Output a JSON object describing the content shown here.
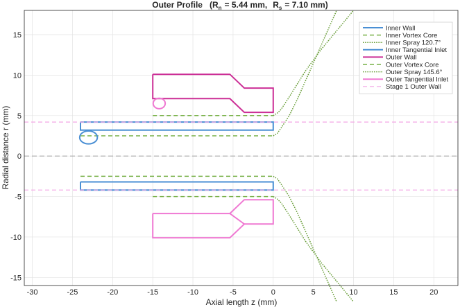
{
  "chart_data": {
    "type": "line",
    "title": {
      "prefix": "Outer Profile",
      "rn_label": "R",
      "rn_sub": "n",
      "rn_value": "= 5.44 mm,",
      "rs_label": "R",
      "rs_sub": "s",
      "rs_value": "= 7.10 mm)"
    },
    "xlabel": "Axial length z (mm)",
    "ylabel": "Radial distance r (mm)",
    "xlim": [
      -31,
      23
    ],
    "ylim": [
      -16,
      18
    ],
    "xticks": [
      -30,
      -25,
      -20,
      -15,
      -10,
      -5,
      0,
      5,
      10,
      15,
      20
    ],
    "yticks": [
      -15,
      -10,
      -5,
      0,
      5,
      10,
      15
    ],
    "grid": true,
    "legend_position": "top-right",
    "centerline": {
      "y": 0,
      "color": "#aaaaaa"
    },
    "series": [
      {
        "name": "Inner Wall",
        "color": "#4a8fd4",
        "style": "solid",
        "width": 2,
        "paths": [
          [
            [
              -24,
              4.2
            ],
            [
              0,
              4.2
            ],
            [
              0,
              3.2
            ],
            [
              -24,
              3.2
            ],
            [
              -24,
              4.2
            ]
          ],
          [
            [
              -24,
              -3.2
            ],
            [
              0,
              -3.2
            ],
            [
              0,
              -4.2
            ],
            [
              -24,
              -4.2
            ],
            [
              -24,
              -3.2
            ]
          ]
        ]
      },
      {
        "name": "Inner Vortex Core",
        "color": "#77b046",
        "style": "dashed",
        "width": 1.5,
        "paths": [
          [
            [
              -24,
              2.5
            ],
            [
              0,
              2.5
            ]
          ],
          [
            [
              -24,
              -2.5
            ],
            [
              0,
              -2.5
            ]
          ]
        ]
      },
      {
        "name": "Inner Spray 120.7°",
        "color": "#6a9e3a",
        "style": "dotted",
        "width": 1.5,
        "paths": [
          [
            [
              0,
              2.5
            ],
            [
              0.5,
              2.8
            ],
            [
              1,
              3.5
            ],
            [
              2,
              5
            ],
            [
              3,
              7
            ],
            [
              5,
              11.5
            ],
            [
              7,
              16
            ],
            [
              7.9,
              18
            ]
          ],
          [
            [
              0,
              -2.5
            ],
            [
              0.5,
              -2.8
            ],
            [
              1,
              -3.5
            ],
            [
              2,
              -5
            ],
            [
              3,
              -7
            ],
            [
              5,
              -11.5
            ],
            [
              7,
              -16
            ],
            [
              7.9,
              -18
            ]
          ]
        ]
      },
      {
        "name": "Inner Tangential Inlet",
        "color": "#4a8fd4",
        "style": "solid",
        "width": 2,
        "circles": [
          [
            -23,
            2.3,
            1.1,
            0.8
          ]
        ]
      },
      {
        "name": "Outer Wall",
        "color": "#cc2f96",
        "style": "solid",
        "width": 2,
        "paths": [
          [
            [
              -15,
              10.1
            ],
            [
              -5.4,
              10.1
            ],
            [
              -3.6,
              8.4
            ],
            [
              0,
              8.4
            ],
            [
              0,
              5.4
            ],
            [
              -3.6,
              5.4
            ],
            [
              -5.4,
              7.1
            ],
            [
              -15,
              7.1
            ],
            [
              -15,
              10.1
            ]
          ]
        ]
      },
      {
        "name": "Outer Vortex Core",
        "color": "#77b046",
        "style": "dashed",
        "width": 1.5,
        "paths": [
          [
            [
              -15,
              5
            ],
            [
              0,
              5
            ]
          ],
          [
            [
              -15,
              -5
            ],
            [
              0,
              -5
            ]
          ]
        ]
      },
      {
        "name": "Outer Spray 145.6°",
        "color": "#6a9e3a",
        "style": "dotted",
        "width": 1.5,
        "paths": [
          [
            [
              0,
              5
            ],
            [
              0.5,
              5.3
            ],
            [
              1,
              5.8
            ],
            [
              2,
              7.3
            ],
            [
              4,
              10.5
            ],
            [
              6,
              13.2
            ],
            [
              8,
              15.6
            ],
            [
              10,
              18
            ]
          ],
          [
            [
              0,
              -5
            ],
            [
              0.5,
              -5.3
            ],
            [
              1,
              -5.8
            ],
            [
              2,
              -7.3
            ],
            [
              4,
              -10.5
            ],
            [
              6,
              -13.2
            ],
            [
              8,
              -15.6
            ],
            [
              10,
              -18
            ]
          ]
        ]
      },
      {
        "name": "Outer Tangential Inlet",
        "color": "#ef78d2",
        "style": "solid",
        "width": 2,
        "paths": [
          [
            [
              -15,
              -7.1
            ],
            [
              -5.4,
              -7.1
            ],
            [
              -3.6,
              -8.4
            ],
            [
              0,
              -8.4
            ],
            [
              0,
              -5.4
            ],
            [
              -3.6,
              -5.4
            ],
            [
              -5.4,
              -7.1
            ]
          ],
          [
            [
              -15,
              -7.1
            ],
            [
              -15,
              -10.1
            ],
            [
              -5.4,
              -10.1
            ],
            [
              -3.6,
              -8.4
            ]
          ]
        ],
        "circles": [
          [
            -14.2,
            6.5,
            0.75,
            0.65
          ]
        ]
      },
      {
        "name": "Stage 1 Outer Wall",
        "color": "#f4a6e6",
        "style": "dashed",
        "width": 1.2,
        "paths": [
          [
            [
              -31,
              4.2
            ],
            [
              23,
              4.2
            ]
          ],
          [
            [
              -31,
              -4.2
            ],
            [
              23,
              -4.2
            ]
          ]
        ]
      }
    ]
  }
}
